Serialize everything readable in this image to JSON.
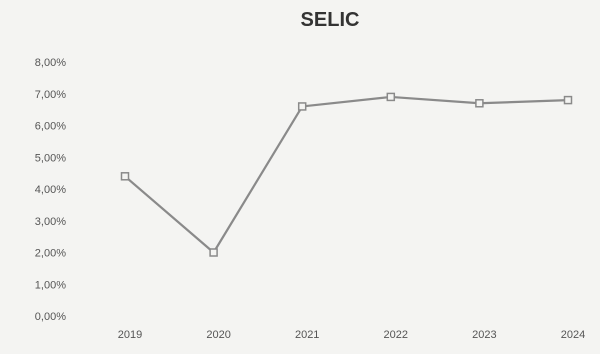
{
  "chart_data": {
    "type": "line",
    "title": "SELIC",
    "xlabel": "",
    "ylabel": "",
    "categories": [
      "2019",
      "2020",
      "2021",
      "2022",
      "2023",
      "2024"
    ],
    "y_tick_labels": [
      "0,00%",
      "1,00%",
      "2,00%",
      "3,00%",
      "4,00%",
      "5,00%",
      "6,00%",
      "7,00%",
      "8,00%"
    ],
    "ylim": [
      0,
      8
    ],
    "grid": false,
    "legend": "none",
    "series": [
      {
        "values": [
          4.4,
          2.0,
          6.6,
          6.9,
          6.7,
          6.8
        ],
        "color": "#8a8a8a"
      }
    ]
  }
}
